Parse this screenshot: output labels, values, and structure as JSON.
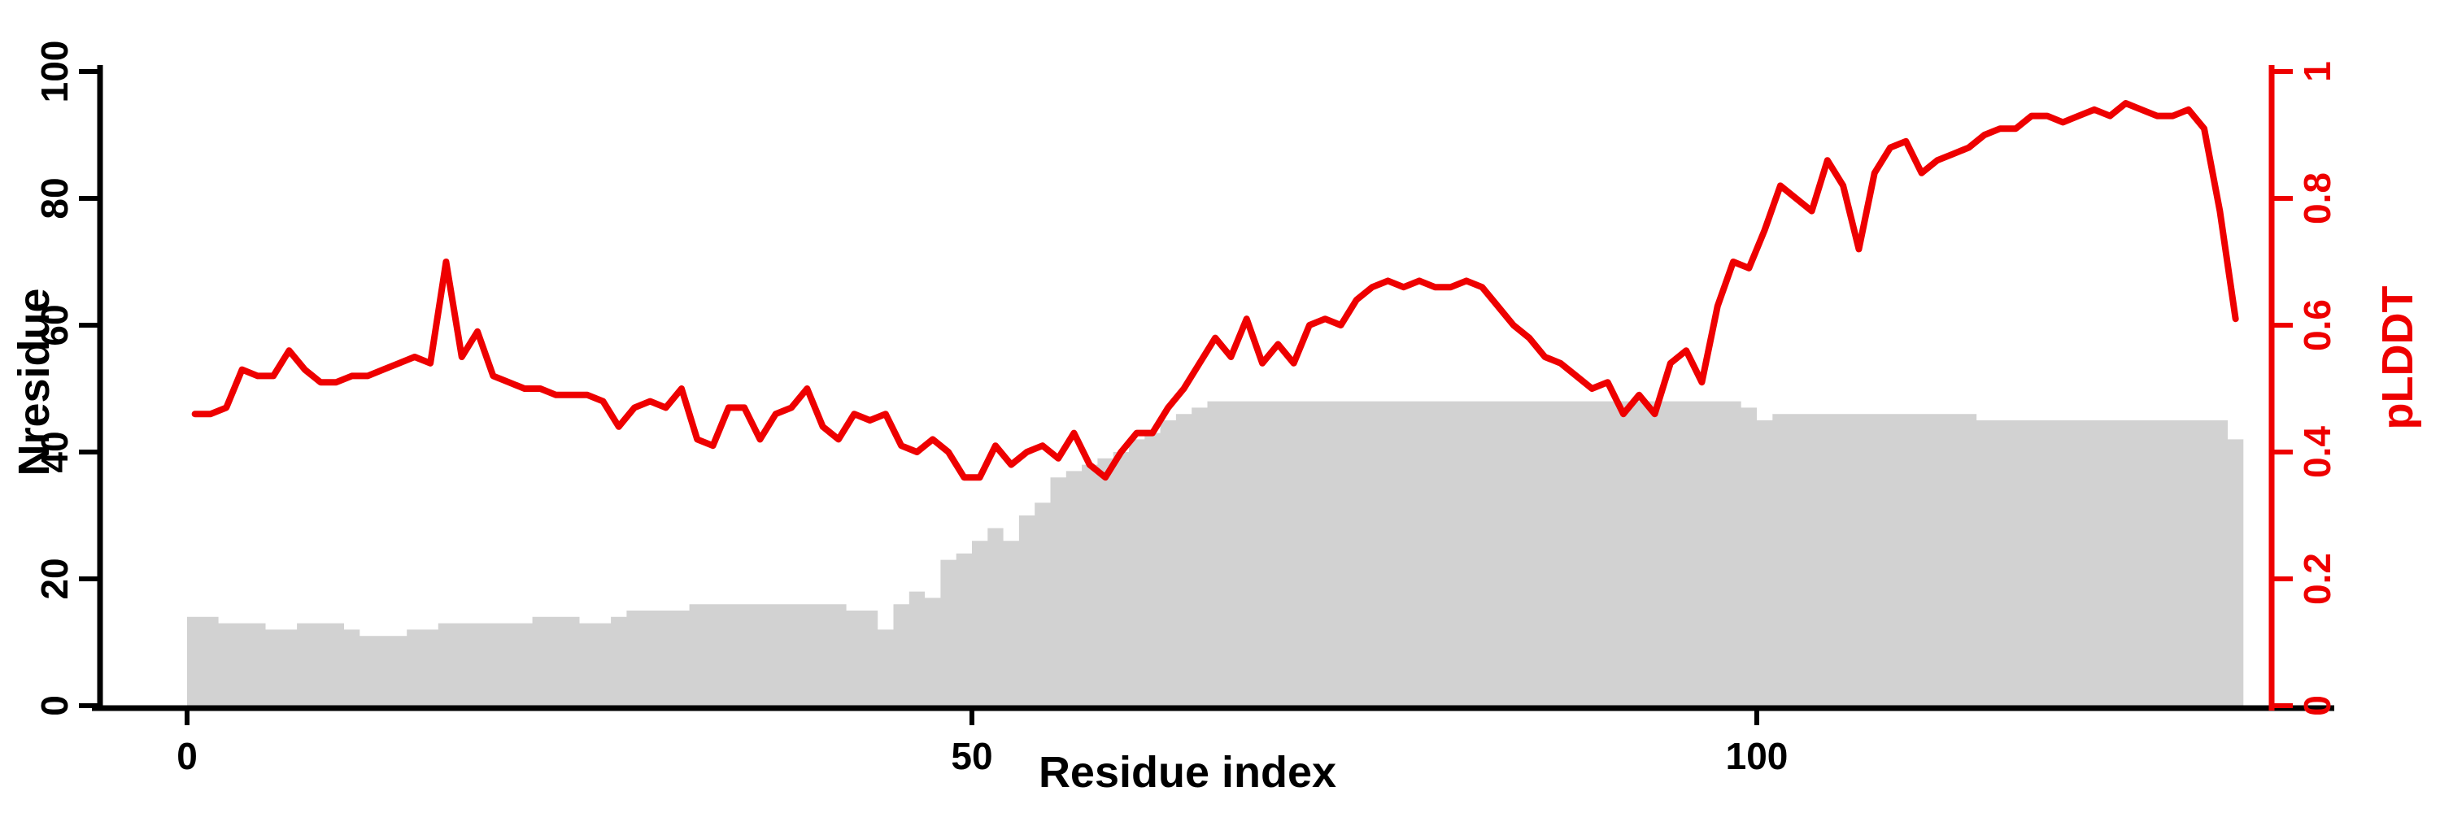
{
  "chart_data": {
    "type": "combo",
    "title": "",
    "xlabel": "Residue index",
    "ylabel": "Nresidue",
    "y2label": "pLDDT",
    "x_start": 1,
    "n_points": 131,
    "xlim": [
      0,
      136
    ],
    "ylim": [
      0,
      100
    ],
    "y2lim": [
      0,
      1
    ],
    "grid": false,
    "legend": "none",
    "xticks": {
      "values": [
        0,
        50,
        100
      ],
      "labels": [
        "0",
        "50",
        "100"
      ]
    },
    "yticks_left": {
      "values": [
        0,
        20,
        40,
        60,
        80,
        100
      ],
      "labels": [
        "0",
        "20",
        "40",
        "60",
        "80",
        "100"
      ]
    },
    "yticks_right": {
      "values": [
        0,
        0.2,
        0.4,
        0.6,
        0.8,
        1
      ],
      "labels": [
        "0",
        "0.2",
        "0.4",
        "0.6",
        "0.8",
        "1"
      ]
    },
    "colors": {
      "bar": "#D2D2D2",
      "line": "#EE0000",
      "axis": "#000000",
      "right_axis": "#EE0000",
      "background": "#ffffff"
    },
    "series": [
      {
        "name": "Nresidue",
        "type": "bar",
        "axis": "left",
        "values": [
          14,
          14,
          13,
          13,
          13,
          12,
          12,
          13,
          13,
          13,
          12,
          11,
          11,
          11,
          12,
          12,
          13,
          13,
          13,
          13,
          13,
          13,
          14,
          14,
          14,
          13,
          13,
          14,
          15,
          15,
          15,
          15,
          16,
          16,
          16,
          16,
          16,
          16,
          16,
          16,
          16,
          16,
          15,
          15,
          12,
          16,
          18,
          17,
          23,
          24,
          26,
          28,
          26,
          30,
          32,
          36,
          37,
          38,
          39,
          40,
          42,
          43,
          45,
          46,
          47,
          48,
          48,
          48,
          48,
          48,
          48,
          48,
          48,
          48,
          48,
          48,
          48,
          48,
          48,
          48,
          48,
          48,
          48,
          48,
          48,
          48,
          48,
          48,
          48,
          48,
          48,
          48,
          48,
          48,
          48,
          48,
          48,
          48,
          48,
          47,
          45,
          46,
          46,
          46,
          46,
          46,
          46,
          46,
          46,
          46,
          46,
          46,
          46,
          46,
          45,
          45,
          45,
          45,
          45,
          45,
          45,
          45,
          45,
          45,
          45,
          45,
          45,
          45,
          45,
          45,
          42
        ]
      },
      {
        "name": "pLDDT",
        "type": "line",
        "axis": "right",
        "values": [
          0.46,
          0.46,
          0.47,
          0.53,
          0.52,
          0.52,
          0.56,
          0.53,
          0.51,
          0.51,
          0.52,
          0.52,
          0.53,
          0.54,
          0.55,
          0.54,
          0.7,
          0.55,
          0.59,
          0.52,
          0.51,
          0.5,
          0.5,
          0.49,
          0.49,
          0.49,
          0.48,
          0.44,
          0.47,
          0.48,
          0.47,
          0.5,
          0.42,
          0.41,
          0.47,
          0.47,
          0.42,
          0.46,
          0.47,
          0.5,
          0.44,
          0.42,
          0.46,
          0.45,
          0.46,
          0.41,
          0.4,
          0.42,
          0.4,
          0.36,
          0.36,
          0.41,
          0.38,
          0.4,
          0.41,
          0.39,
          0.43,
          0.38,
          0.36,
          0.4,
          0.43,
          0.43,
          0.47,
          0.5,
          0.54,
          0.58,
          0.55,
          0.61,
          0.54,
          0.57,
          0.54,
          0.6,
          0.61,
          0.6,
          0.64,
          0.66,
          0.67,
          0.66,
          0.67,
          0.66,
          0.66,
          0.67,
          0.66,
          0.63,
          0.6,
          0.58,
          0.55,
          0.54,
          0.52,
          0.5,
          0.51,
          0.46,
          0.49,
          0.46,
          0.54,
          0.56,
          0.51,
          0.63,
          0.7,
          0.69,
          0.75,
          0.82,
          0.8,
          0.78,
          0.86,
          0.82,
          0.72,
          0.84,
          0.88,
          0.89,
          0.84,
          0.86,
          0.87,
          0.88,
          0.9,
          0.91,
          0.91,
          0.93,
          0.93,
          0.92,
          0.93,
          0.94,
          0.93,
          0.95,
          0.94,
          0.93,
          0.93,
          0.94,
          0.91,
          0.78,
          0.61
        ]
      }
    ]
  }
}
